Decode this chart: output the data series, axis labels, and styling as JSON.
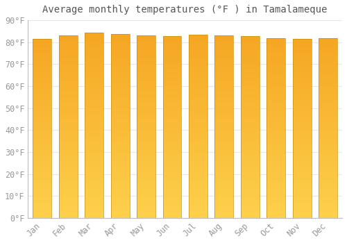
{
  "title": "Average monthly temperatures (°F ) in Tamalameque",
  "months": [
    "Jan",
    "Feb",
    "Mar",
    "Apr",
    "May",
    "Jun",
    "Jul",
    "Aug",
    "Sep",
    "Oct",
    "Nov",
    "Dec"
  ],
  "values": [
    81.5,
    83.0,
    84.2,
    83.8,
    83.0,
    82.8,
    83.5,
    83.2,
    82.8,
    81.8,
    81.5,
    81.8
  ],
  "ylim": [
    0,
    90
  ],
  "yticks": [
    0,
    10,
    20,
    30,
    40,
    50,
    60,
    70,
    80,
    90
  ],
  "ytick_labels": [
    "0°F",
    "10°F",
    "20°F",
    "30°F",
    "40°F",
    "50°F",
    "60°F",
    "70°F",
    "80°F",
    "90°F"
  ],
  "bar_color_top": "#F5A623",
  "bar_color_bottom": "#FDD04B",
  "bar_edge_color": "#C8900A",
  "background_color": "#ffffff",
  "grid_color": "#e8e8e8",
  "title_fontsize": 10,
  "tick_fontsize": 8.5,
  "font_color": "#999999"
}
